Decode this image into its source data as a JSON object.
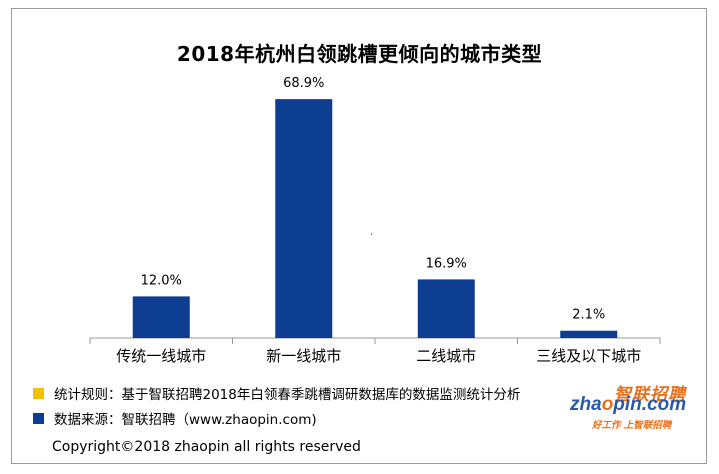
{
  "chart_data": {
    "type": "bar",
    "title": "2018年杭州白领跳槽更倾向的城市类型",
    "categories": [
      "传统一线城市",
      "新一线城市",
      "二线城市",
      "三线及以下城市"
    ],
    "values": [
      12.0,
      68.9,
      16.9,
      2.1
    ],
    "value_labels": [
      "12.0%",
      "68.9%",
      "16.9%",
      "2.1%"
    ],
    "unit": "%",
    "ylim": [
      0,
      75
    ],
    "bar_color": "#0d3d91",
    "grid": false,
    "legend": "bottom-left"
  },
  "notes": [
    {
      "color": "#f2c200",
      "text": "统计规则：基于智联招聘2018年白领春季跳槽调研数据库的数据监测统计分析"
    },
    {
      "color": "#0d3d91",
      "text": "数据来源：智联招聘（www.zhaopin.com)"
    }
  ],
  "footer": "Copyright©2018 zhaopin all rights reserved",
  "logo": {
    "cn": "智联招聘",
    "en_pre": "zha",
    "en_dot": "o",
    "en_post": "pin.com",
    "slogan": "好工作  上智联招聘"
  }
}
